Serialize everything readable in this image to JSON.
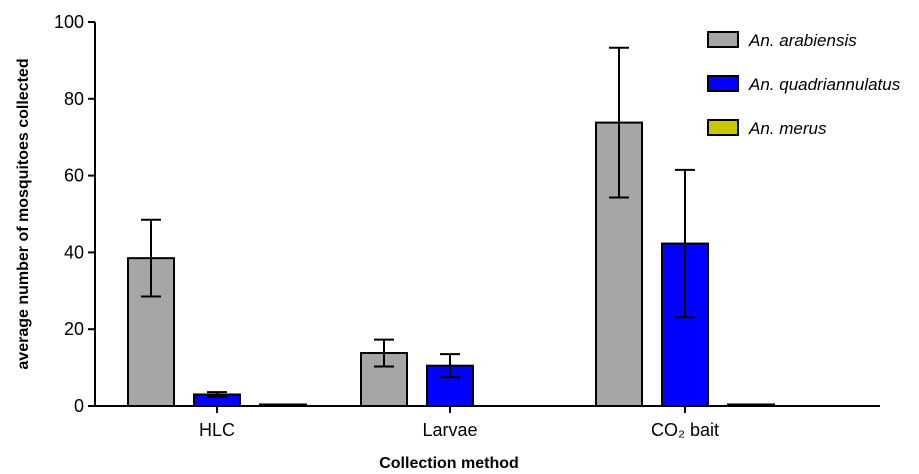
{
  "chart_data": {
    "type": "bar",
    "categories": [
      "HLC",
      "Larvae",
      "CO₂ bait"
    ],
    "series": [
      {
        "name": "An. arabiensis",
        "color": "#a6a6a6",
        "values": [
          38.5,
          13.8,
          73.8
        ],
        "error": [
          10,
          3.5,
          19.5
        ]
      },
      {
        "name": "An. quadriannulatus",
        "color": "#0000ff",
        "values": [
          3.0,
          10.5,
          42.3
        ],
        "error": [
          0.6,
          3.0,
          19.2
        ]
      },
      {
        "name": "An. merus",
        "color": "#c8c800",
        "values": [
          0.4,
          0,
          0.4
        ],
        "error": [
          0,
          0,
          0
        ]
      }
    ],
    "xlabel": "Collection method",
    "ylabel": "average number of mosquitoes collected",
    "ylim": [
      0,
      100
    ],
    "yticks": [
      "0",
      "20",
      "40",
      "60",
      "80",
      "100"
    ],
    "grid": false,
    "legend_position": "top-right"
  }
}
